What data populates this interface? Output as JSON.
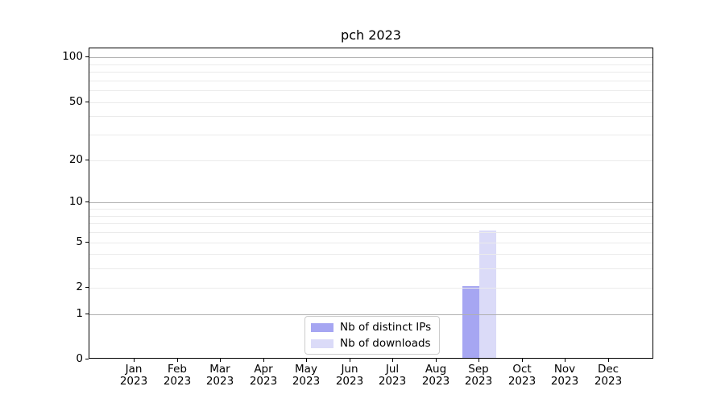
{
  "chart_data": {
    "type": "bar",
    "title": "pch 2023",
    "categories": [
      "Jan",
      "Feb",
      "Mar",
      "Apr",
      "May",
      "Jun",
      "Jul",
      "Aug",
      "Sep",
      "Oct",
      "Nov",
      "Dec"
    ],
    "category_sublabel": "2023",
    "series": [
      {
        "name": "Nb of distinct IPs",
        "color": "#a6a6f2",
        "values": [
          0,
          0,
          0,
          0,
          0,
          0,
          0,
          0,
          2,
          0,
          0,
          0
        ]
      },
      {
        "name": "Nb of downloads",
        "color": "#dbdbf8",
        "values": [
          0,
          0,
          0,
          0,
          0,
          0,
          0,
          0,
          6,
          0,
          0,
          0
        ]
      }
    ],
    "yscale": "log1p",
    "ylim": [
      0,
      115
    ],
    "yticks": [
      0,
      1,
      2,
      5,
      10,
      20,
      50,
      100
    ],
    "grid_major_values": [
      1,
      10,
      100
    ],
    "grid_minor_values": [
      2,
      3,
      4,
      5,
      6,
      7,
      8,
      9,
      20,
      30,
      40,
      50,
      60,
      70,
      80,
      90
    ],
    "grid": true,
    "legend_position": "lower-center",
    "xlabel": "",
    "ylabel": ""
  },
  "colors": {
    "grid_major": "#b0b0b0",
    "grid_minor": "#ebebeb",
    "axis": "#000000",
    "background": "#ffffff"
  }
}
